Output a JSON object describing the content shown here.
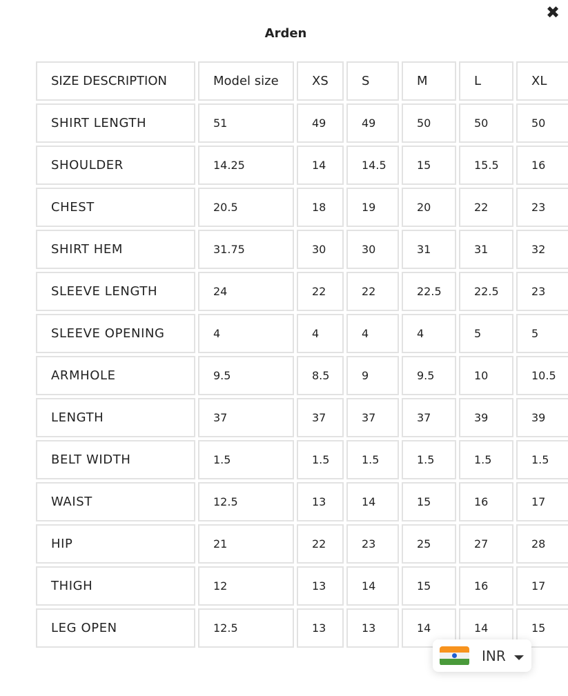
{
  "modal": {
    "title": "Arden",
    "close_icon": "close-x-icon"
  },
  "table": {
    "headers": [
      "SIZE DESCRIPTION",
      "Model size",
      "XS",
      "S",
      "M",
      "L",
      "XL"
    ],
    "rows": [
      [
        "SHIRT LENGTH",
        "51",
        "49",
        "49",
        "50",
        "50",
        "50"
      ],
      [
        "SHOULDER",
        "14.25",
        "14",
        "14.5",
        "15",
        "15.5",
        "16"
      ],
      [
        "CHEST",
        "20.5",
        "18",
        "19",
        "20",
        "22",
        "23"
      ],
      [
        "SHIRT HEM",
        "31.75",
        "30",
        "30",
        "31",
        "31",
        "32"
      ],
      [
        "SLEEVE LENGTH",
        "24",
        "22",
        "22",
        "22.5",
        "22.5",
        "23"
      ],
      [
        "SLEEVE OPENING",
        "4",
        "4",
        "4",
        "4",
        "5",
        "5"
      ],
      [
        "ARMHOLE",
        "9.5",
        "8.5",
        "9",
        "9.5",
        "10",
        "10.5"
      ],
      [
        "LENGTH",
        "37",
        "37",
        "37",
        "37",
        "39",
        "39"
      ],
      [
        "BELT WIDTH",
        "1.5",
        "1.5",
        "1.5",
        "1.5",
        "1.5",
        "1.5"
      ],
      [
        "WAIST",
        "12.5",
        "13",
        "14",
        "15",
        "16",
        "17"
      ],
      [
        "HIP",
        "21",
        "22",
        "23",
        "25",
        "27",
        "28"
      ],
      [
        "THIGH",
        "12",
        "13",
        "14",
        "15",
        "16",
        "17"
      ],
      [
        "LEG OPEN",
        "12.5",
        "13",
        "13",
        "14",
        "14",
        "15"
      ]
    ]
  },
  "currency": {
    "code": "INR",
    "flag_icon": "india-flag-icon",
    "flag_colors": [
      "#f7931e",
      "#f1f1f1",
      "#4a9a3a"
    ]
  }
}
